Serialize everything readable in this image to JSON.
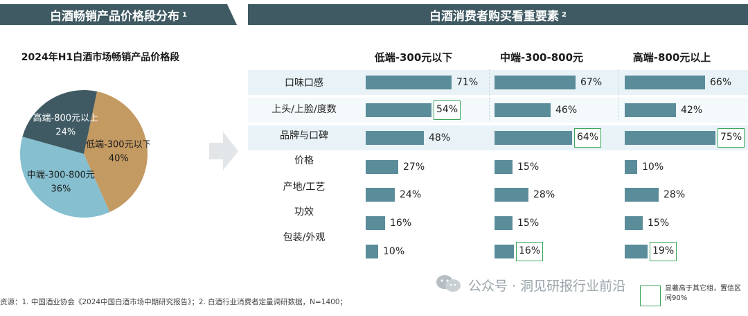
{
  "left_banner": {
    "title": "白酒畅销产品价格段分布",
    "note": "1"
  },
  "right_banner": {
    "title": "白酒消费者购买看重要素",
    "note": "2"
  },
  "colors": {
    "banner": "#3f5a63",
    "bar": "#5a8c9a",
    "highlight": "#3aa65a",
    "low": "#c49a63",
    "mid": "#86bfcf",
    "high": "#3f5a63"
  },
  "chart_data": [
    {
      "type": "pie",
      "title": "2024年H1白酒市场畅销产品价格段",
      "slices": [
        {
          "label": "低端-300元以下",
          "value": 40,
          "value_label": "40%",
          "color": "#c49a63"
        },
        {
          "label": "中端-300-800元",
          "value": 36,
          "value_label": "36%",
          "color": "#86bfcf"
        },
        {
          "label": "高端-800元以上",
          "value": 24,
          "value_label": "24%",
          "color": "#3f5a63"
        }
      ]
    },
    {
      "type": "bar",
      "title": "白酒消费者购买看重要素",
      "categories": [
        "口味口感",
        "上头/上脸/度数",
        "品牌与口碑",
        "价格",
        "产地/工艺",
        "功效",
        "包装/外观"
      ],
      "series": [
        {
          "name": "低端-300元以下",
          "values": [
            71,
            54,
            48,
            27,
            24,
            16,
            10
          ],
          "highlighted": [
            "上头/上脸/度数"
          ]
        },
        {
          "name": "中端-300-800元",
          "values": [
            67,
            46,
            64,
            15,
            28,
            15,
            16
          ],
          "highlighted": [
            "品牌与口碑",
            "包装/外观"
          ]
        },
        {
          "name": "高端-800元以上",
          "values": [
            66,
            42,
            75,
            10,
            28,
            15,
            19
          ],
          "highlighted": [
            "品牌与口碑",
            "包装/外观"
          ]
        }
      ],
      "value_suffix": "%"
    }
  ],
  "legend": {
    "text": "显著高于其它组，置信区间90%"
  },
  "footnote": "资源：1. 中国酒业协会《2024中国白酒市场中期研究报告》；2. 白酒行业消费者定量调研数据，N=1400；",
  "watermark": "公众号 · 洞见研报行业前沿"
}
